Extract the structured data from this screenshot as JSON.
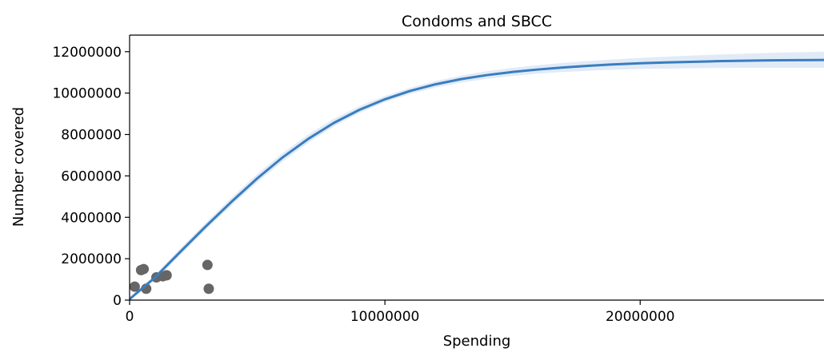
{
  "chart_data": {
    "type": "scatter",
    "title": "Condoms and SBCC",
    "xlabel": "Spending",
    "ylabel": "Number covered",
    "xlim": [
      0,
      27200000
    ],
    "ylim": [
      0,
      12800000
    ],
    "grid": false,
    "x_ticks": [
      0,
      10000000,
      20000000
    ],
    "x_tick_labels": [
      "0",
      "10000000",
      "20000000"
    ],
    "y_ticks": [
      0,
      2000000,
      4000000,
      6000000,
      8000000,
      10000000,
      12000000
    ],
    "y_tick_labels": [
      "0",
      "2000000",
      "4000000",
      "6000000",
      "8000000",
      "10000000",
      "12000000"
    ],
    "colors": {
      "points": "#666666",
      "curve": "#3a7dbf",
      "band": "#dce8f6",
      "axis": "#000000"
    },
    "series": [
      {
        "type": "scatter",
        "x": [
          200000,
          450000,
          550000,
          650000,
          1050000,
          1300000,
          1450000,
          3050000,
          3100000
        ],
        "y": [
          650000,
          1450000,
          1500000,
          550000,
          1100000,
          1150000,
          1200000,
          1700000,
          550000
        ]
      },
      {
        "type": "line",
        "x": [
          0,
          1000000,
          2000000,
          3000000,
          4000000,
          5000000,
          6000000,
          7000000,
          8000000,
          9000000,
          10000000,
          11000000,
          12000000,
          13000000,
          14000000,
          15000000,
          16000000,
          17000000,
          18000000,
          19000000,
          20000000,
          21000000,
          22000000,
          23000000,
          24000000,
          25000000,
          26000000,
          27200000
        ],
        "y": [
          50000,
          1100000,
          2350000,
          3580000,
          4760000,
          5880000,
          6900000,
          7790000,
          8560000,
          9190000,
          9700000,
          10110000,
          10430000,
          10680000,
          10870000,
          11020000,
          11140000,
          11240000,
          11320000,
          11390000,
          11440000,
          11480000,
          11510000,
          11540000,
          11560000,
          11580000,
          11590000,
          11600000
        ],
        "band_low": [
          0,
          980000,
          2200000,
          3420000,
          4580000,
          5690000,
          6700000,
          7600000,
          8390000,
          9040000,
          9560000,
          9960000,
          10270000,
          10510000,
          10690000,
          10830000,
          10940000,
          11020000,
          11080000,
          11130000,
          11160000,
          11180000,
          11200000,
          11210000,
          11220000,
          11220000,
          11220000,
          11220000
        ],
        "band_high": [
          110000,
          1230000,
          2520000,
          3760000,
          4960000,
          6090000,
          7110000,
          8000000,
          8760000,
          9370000,
          9860000,
          10260000,
          10590000,
          10850000,
          11060000,
          11220000,
          11350000,
          11460000,
          11550000,
          11630000,
          11700000,
          11760000,
          11810000,
          11860000,
          11900000,
          11940000,
          11970000,
          12000000
        ]
      }
    ]
  }
}
